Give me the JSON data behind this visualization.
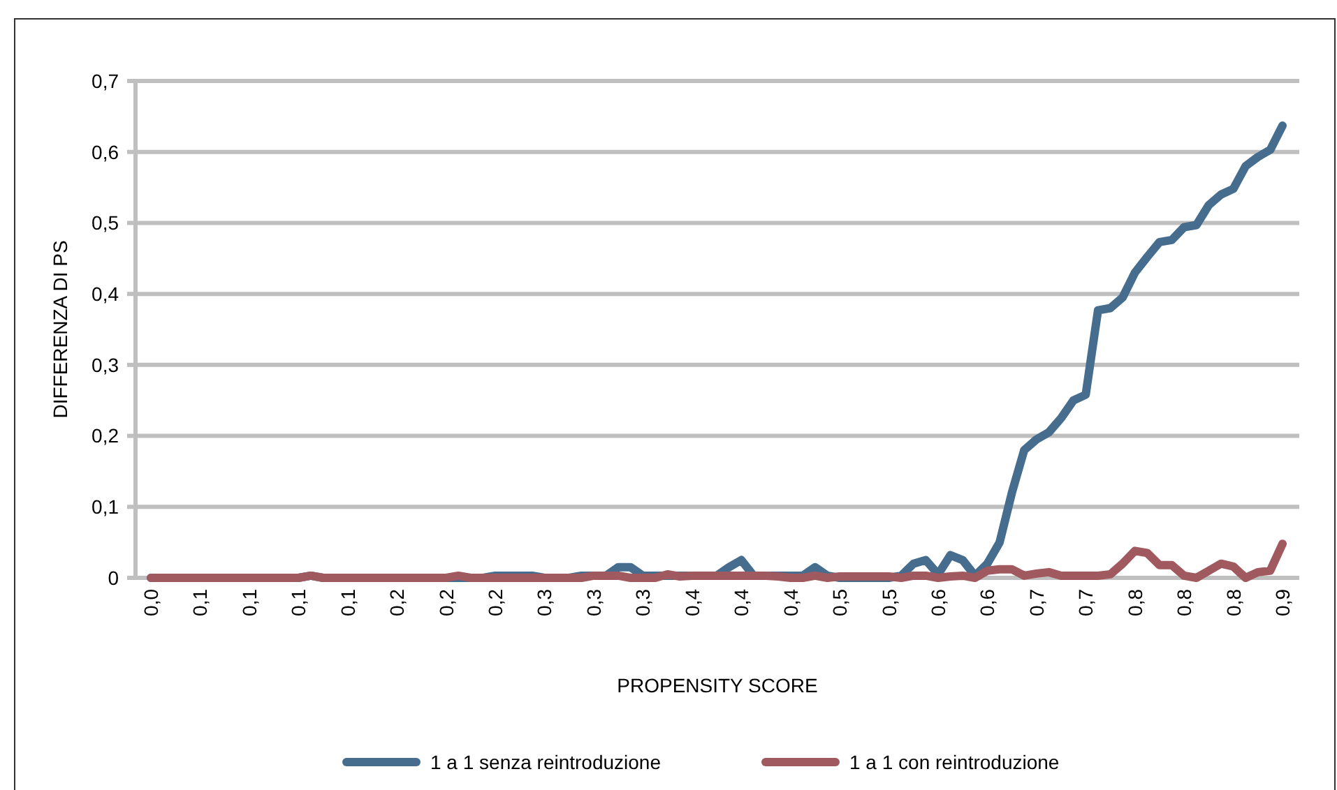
{
  "chart_data": {
    "type": "line",
    "xlabel": "PROPENSITY SCORE",
    "ylabel": "DIFFERENZA DI PS",
    "categories": [
      "0,0",
      null,
      null,
      null,
      "0,1",
      null,
      null,
      null,
      "0,1",
      null,
      null,
      null,
      "0,1",
      null,
      null,
      null,
      "0,1",
      null,
      null,
      null,
      "0,2",
      null,
      null,
      null,
      "0,2",
      null,
      null,
      null,
      "0,2",
      null,
      null,
      null,
      "0,3",
      null,
      null,
      null,
      "0,3",
      null,
      null,
      null,
      "0,3",
      null,
      null,
      null,
      "0,4",
      null,
      null,
      null,
      "0,4",
      null,
      null,
      null,
      "0,4",
      null,
      null,
      null,
      "0,5",
      null,
      null,
      null,
      "0,5",
      null,
      null,
      null,
      "0,6",
      null,
      null,
      null,
      "0,6",
      null,
      null,
      null,
      "0,7",
      null,
      null,
      null,
      "0,7",
      null,
      null,
      null,
      "0,8",
      null,
      null,
      null,
      "0,8",
      null,
      null,
      null,
      "0,8",
      null,
      null,
      null,
      "0,9"
    ],
    "series": [
      {
        "name": "1 a 1 senza reintroduzione",
        "color": "#466d8d",
        "values": [
          0,
          0,
          0,
          0,
          0,
          0,
          0,
          0,
          0,
          0,
          0,
          0,
          0,
          0.003,
          0,
          0,
          0,
          0,
          0,
          0,
          0,
          0,
          0,
          0,
          0,
          0,
          0,
          0,
          0.003,
          0.003,
          0.003,
          0.003,
          0,
          0,
          0,
          0.003,
          0.003,
          0.003,
          0.015,
          0.015,
          0.003,
          0.003,
          0.003,
          0.003,
          0.003,
          0.003,
          0.003,
          0.015,
          0.025,
          0.003,
          0.003,
          0.003,
          0.003,
          0.003,
          0.015,
          0.003,
          0,
          0,
          0,
          0,
          0,
          0.003,
          0.02,
          0.025,
          0.005,
          0.032,
          0.025,
          0.003,
          0.02,
          0.05,
          0.12,
          0.18,
          0.195,
          0.205,
          0.225,
          0.25,
          0.258,
          0.377,
          0.38,
          0.395,
          0.43,
          0.452,
          0.473,
          0.476,
          0.494,
          0.497,
          0.525,
          0.54,
          0.548,
          0.58,
          0.593,
          0.603,
          0.637
        ]
      },
      {
        "name": "1 a 1 con reintroduzione",
        "color": "#a05a5f",
        "values": [
          0,
          0,
          0,
          0,
          0,
          0,
          0,
          0,
          0,
          0,
          0,
          0,
          0,
          0.003,
          0,
          0,
          0,
          0,
          0,
          0,
          0,
          0,
          0,
          0,
          0,
          0.003,
          0,
          0,
          0,
          0,
          0,
          0,
          0,
          0,
          0,
          0,
          0.003,
          0.003,
          0.003,
          0,
          0,
          0,
          0.005,
          0.002,
          0.003,
          0.003,
          0.003,
          0.003,
          0.003,
          0.003,
          0.003,
          0.002,
          0,
          0,
          0.003,
          0,
          0.002,
          0.002,
          0.002,
          0.002,
          0.002,
          0,
          0.003,
          0.003,
          0,
          0.002,
          0.003,
          0,
          0.01,
          0.012,
          0.012,
          0.003,
          0.006,
          0.008,
          0.003,
          0.003,
          0.003,
          0.003,
          0.005,
          0.02,
          0.038,
          0.035,
          0.018,
          0.018,
          0.003,
          0,
          0.01,
          0.02,
          0.016,
          0,
          0.008,
          0.01,
          0.048
        ]
      }
    ],
    "ylim": [
      0,
      0.7
    ],
    "yticks": [
      0,
      {
        "value": 0.1,
        "label": "0,1"
      },
      {
        "value": 0.2,
        "label": "0,2"
      },
      {
        "value": 0.3,
        "label": "0,3"
      },
      {
        "value": 0.4,
        "label": "0,4"
      },
      {
        "value": 0.5,
        "label": "0,5"
      },
      {
        "value": 0.6,
        "label": "0,6"
      },
      {
        "value": 0.7,
        "label": "0,7"
      }
    ],
    "grid": "y",
    "legend": "bottom",
    "marker": "none",
    "line_style": "solid"
  }
}
